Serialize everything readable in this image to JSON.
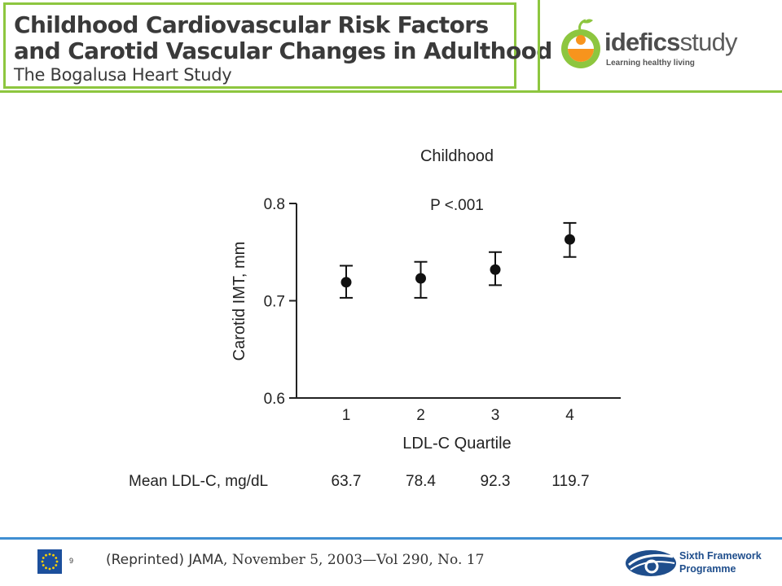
{
  "header": {
    "title_line1": "Childhood Cardiovascular Risk Factors",
    "title_line2": "and Carotid Vascular Changes in Adulthood",
    "subtitle": "The Bogalusa Heart Study"
  },
  "logo": {
    "name_bold": "idefics",
    "name_light": "study",
    "tagline": "Learning healthy living",
    "icon": "idefics-logo-icon"
  },
  "chart_data": {
    "type": "scatter",
    "title": "Childhood",
    "annotation": "P <.001",
    "ylabel": "Carotid IMT, mm",
    "xlabel": "LDL-C Quartile",
    "ylim": [
      0.6,
      0.8
    ],
    "yticks": [
      "0.6",
      "0.7",
      "0.8"
    ],
    "categories": [
      "1",
      "2",
      "3",
      "4"
    ],
    "points": [
      {
        "x": "1",
        "y": 0.719,
        "err_low": 0.703,
        "err_high": 0.736
      },
      {
        "x": "2",
        "y": 0.723,
        "err_low": 0.703,
        "err_high": 0.74
      },
      {
        "x": "3",
        "y": 0.732,
        "err_low": 0.716,
        "err_high": 0.75
      },
      {
        "x": "4",
        "y": 0.763,
        "err_low": 0.745,
        "err_high": 0.78
      }
    ],
    "grid": false,
    "row_label": "Mean LDL-C, mg/dL",
    "row_values": [
      "63.7",
      "78.4",
      "92.3",
      "119.7"
    ]
  },
  "footer": {
    "slide_number": "9",
    "citation_prefix": "(Reprinted) ",
    "citation_journal": "JAMA",
    "citation_rest": ", November 5, 2003—Vol 290, No. 17",
    "programme_line1": "Sixth Framework",
    "programme_line2": "Programme",
    "colors": {
      "accent_green": "#8dc63f",
      "footer_blue": "#3f8fd2",
      "eu_blue": "#1c4f9c",
      "eu_star": "#ffd200"
    }
  }
}
